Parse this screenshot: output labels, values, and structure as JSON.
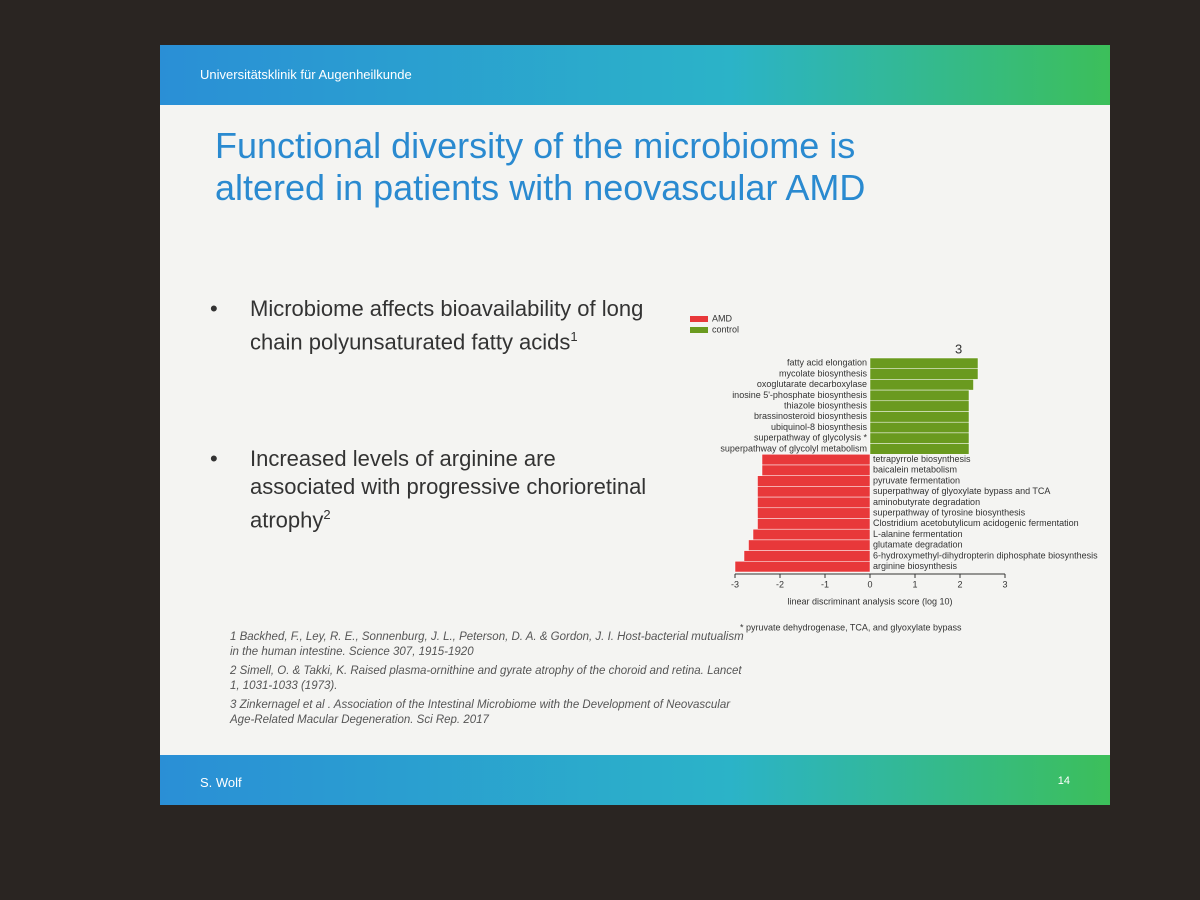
{
  "header": {
    "institution": "Universitätsklinik für Augenheilkunde"
  },
  "title": "Functional diversity of the microbiome is altered in patients with neovascular AMD",
  "bullets": [
    {
      "text": "Microbiome affects bioavailability of long chain polyunsaturated fatty acids",
      "sup": "1"
    },
    {
      "text": "Increased levels of arginine are associated with progressive chorioretinal atrophy",
      "sup": "2"
    }
  ],
  "references": [
    "1 Backhed, F., Ley, R. E., Sonnenburg, J. L., Peterson, D. A. & Gordon, J. I. Host-bacterial mutualism in the human intestine. Science 307, 1915-1920",
    "2 Simell, O. & Takki, K. Raised plasma-ornithine and gyrate atrophy of the choroid and retina. Lancet 1, 1031-1033 (1973).",
    "3 Zinkernagel et al . Association of the Intestinal Microbiome with the Development of Neovascular Age-Related Macular Degeneration. Sci Rep. 2017"
  ],
  "footer": {
    "author": "S. Wolf",
    "page": "14"
  },
  "chart_data": {
    "type": "bar",
    "orientation": "horizontal",
    "source_marker": "3",
    "categories": [
      "fatty acid elongation",
      "mycolate biosynthesis",
      "oxoglutarate decarboxylase",
      "inosine 5'-phosphate biosynthesis",
      "thiazole biosynthesis",
      "brassinosteroid biosynthesis",
      "ubiquinol-8 biosynthesis",
      "superpathway of glycolysis *",
      "superpathway of glycolyl metabolism",
      "tetrapyrrole biosynthesis",
      "baicalein metabolism",
      "pyruvate fermentation",
      "superpathway of glyoxylate bypass and TCA",
      "aminobutyrate degradation",
      "superpathway of tyrosine biosynthesis",
      "Clostridium acetobutylicum acidogenic fermentation",
      "L-alanine fermentation",
      "glutamate degradation",
      "6-hydroxymethyl-dihydropterin diphosphate biosynthesis",
      "arginine biosynthesis"
    ],
    "series": [
      {
        "name": "AMD",
        "color": "#e8383a",
        "values": [
          null,
          null,
          null,
          null,
          null,
          null,
          null,
          null,
          null,
          -2.4,
          -2.4,
          -2.5,
          -2.5,
          -2.5,
          -2.5,
          -2.5,
          -2.6,
          -2.7,
          -2.8,
          -3.0
        ]
      },
      {
        "name": "control",
        "color": "#6a9a1f",
        "values": [
          2.4,
          2.4,
          2.3,
          2.2,
          2.2,
          2.2,
          2.2,
          2.2,
          2.2,
          null,
          null,
          null,
          null,
          null,
          null,
          null,
          null,
          null,
          null,
          null
        ]
      }
    ],
    "xlim": [
      -3,
      3
    ],
    "xticks": [
      -3,
      -2,
      -1,
      0,
      1,
      2,
      3
    ],
    "xlabel": "linear discriminant analysis score (log 10)",
    "footnote": "* pyruvate dehydrogenase, TCA, and glyoxylate bypass",
    "legend": "top-left",
    "grid": false
  }
}
